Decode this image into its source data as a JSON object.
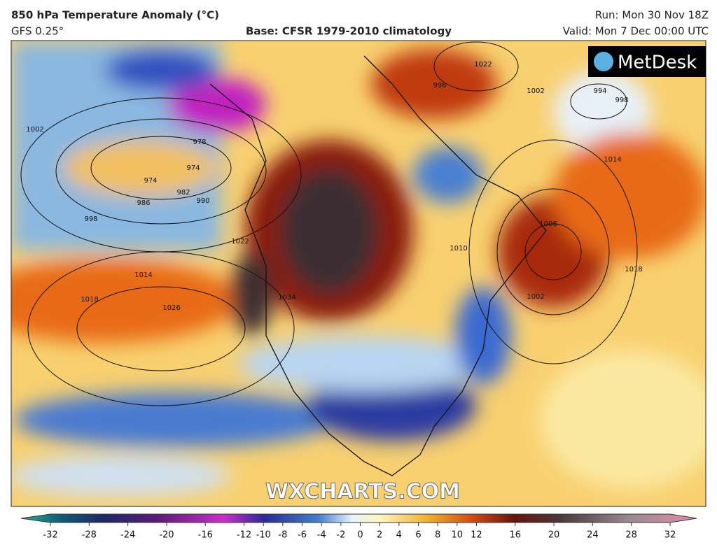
{
  "header": {
    "title": "850 hPa Temperature Anomaly (°C)",
    "model": "GFS 0.25°",
    "base": "Base: CFSR 1979-2010 climatology",
    "run": "Run: Mon 30 Nov 18Z",
    "valid": "Valid: Mon 7 Dec 00:00 UTC"
  },
  "logo": "MetDesk",
  "watermark": "WXCHARTS.COM",
  "colorbar": {
    "range": [
      -32,
      32
    ],
    "ticks": [
      -32,
      -28,
      -24,
      -20,
      -16,
      -12,
      -10,
      -8,
      -6,
      -4,
      -2,
      0,
      2,
      4,
      6,
      8,
      10,
      12,
      16,
      20,
      24,
      28,
      32
    ]
  },
  "isobar_labels": [
    "1002",
    "978",
    "974",
    "974",
    "982",
    "986",
    "990",
    "998",
    "1014",
    "1018",
    "1026",
    "1022",
    "1034",
    "1022",
    "998",
    "1002",
    "994",
    "998",
    "1014",
    "1006",
    "1010",
    "1018",
    "1002"
  ]
}
